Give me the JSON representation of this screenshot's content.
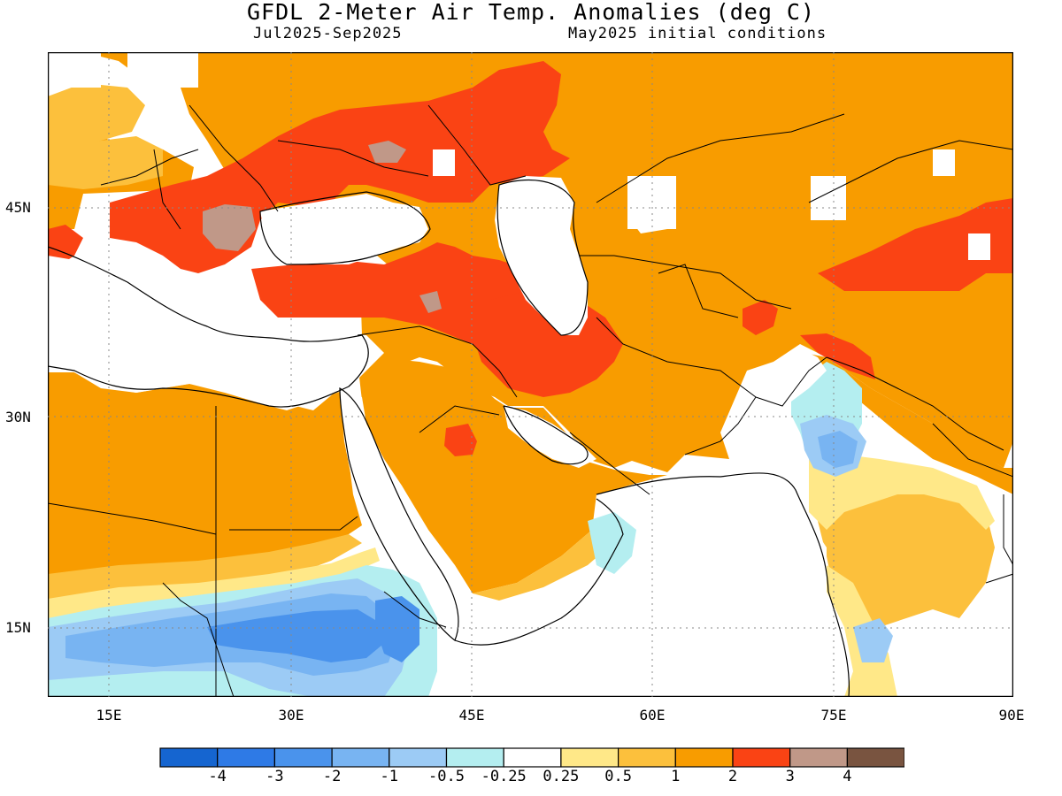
{
  "title": "GFDL 2-Meter Air Temp. Anomalies (deg C)",
  "period": "Jul2025-Sep2025",
  "init": "May2025 initial conditions",
  "axes": {
    "lat_labels": [
      "45N",
      "30N",
      "15N"
    ],
    "lon_labels": [
      "15E",
      "30E",
      "45E",
      "60E",
      "75E",
      "90E"
    ]
  },
  "legend": {
    "colors": [
      "#1565d0",
      "#2e7ae6",
      "#4a93ec",
      "#78b4f2",
      "#9ccbf5",
      "#b4eef0",
      "#ffffff",
      "#ffe888",
      "#fcc03c",
      "#f89c00",
      "#fa4314",
      "#c09888",
      "#795440"
    ],
    "labels": [
      "-4",
      "-3",
      "-2",
      "-1",
      "-0.5",
      "-0.25",
      "0.25",
      "0.5",
      "1",
      "2",
      "3",
      "4"
    ]
  }
}
